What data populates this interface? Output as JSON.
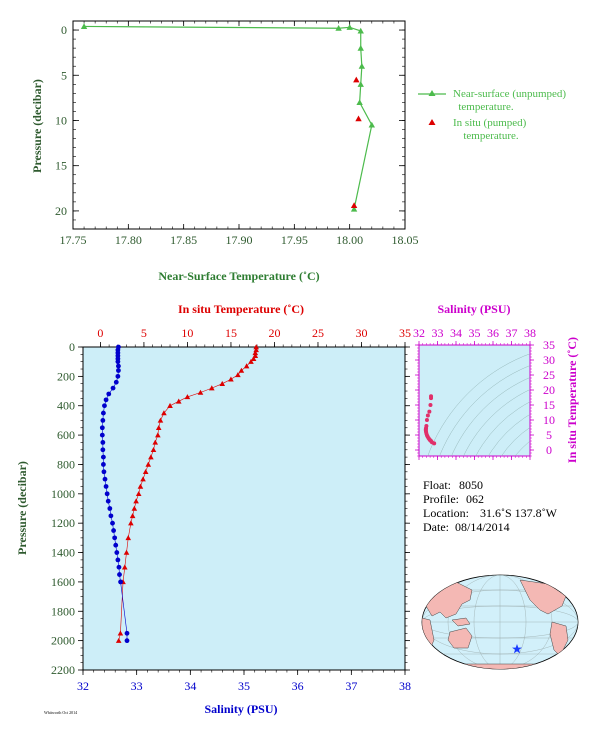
{
  "colors": {
    "green": "#4cbb4c",
    "label_green": "#2e7d32",
    "axis_dark": "#3a5a3a",
    "red": "#dd0000",
    "blue": "#0000cc",
    "magenta": "#cc00cc",
    "pink": "#e0306a",
    "panel_bg": "#cdeef8",
    "land": "#f4b8b4",
    "ocean": "#d2f0fa"
  },
  "chart_data": [
    {
      "id": "near_surface",
      "type": "line",
      "xlabel": "Near-Surface Temperature (˚C)",
      "ylabel": "Pressure (decibar)",
      "xlim": [
        17.75,
        18.05
      ],
      "ylim": [
        22,
        -1
      ],
      "xticks": [
        "17.75",
        "17.80",
        "17.85",
        "17.90",
        "17.95",
        "18.00",
        "18.05"
      ],
      "yticks": [
        "0",
        "5",
        "10",
        "15",
        "20"
      ],
      "legend": [
        "Near-surface (unpumped) temperature.",
        "In situ (pumped) temperature."
      ],
      "legend_position": "right",
      "series": [
        {
          "name": "Near-surface (unpumped) temperature.",
          "marker": "triangle",
          "x": [
            17.76,
            17.99,
            18.0,
            18.01,
            18.01,
            18.011,
            18.01,
            18.009,
            18.02,
            18.004
          ],
          "y": [
            -0.4,
            -0.2,
            -0.3,
            0.1,
            2.0,
            4.0,
            6.0,
            8.0,
            10.5,
            19.8
          ]
        },
        {
          "name": "In situ (pumped) temperature.",
          "marker": "triangle",
          "x": [
            18.006,
            18.008,
            18.004
          ],
          "y": [
            5.5,
            9.8,
            19.4
          ]
        }
      ]
    },
    {
      "id": "profile",
      "type": "line",
      "xlabel_bottom": "Salinity (PSU)",
      "xlabel_top": "In situ Temperature (˚C)",
      "ylabel": "Pressure (decibar)",
      "salinity_lim": [
        32,
        38
      ],
      "temperature_lim": [
        -2,
        35
      ],
      "ylim": [
        2200,
        0
      ],
      "salinity_ticks": [
        "32",
        "33",
        "34",
        "35",
        "36",
        "37",
        "38"
      ],
      "temperature_ticks": [
        "0",
        "5",
        "10",
        "15",
        "20",
        "25",
        "30",
        "35"
      ],
      "yticks": [
        "0",
        "200",
        "400",
        "600",
        "800",
        "1000",
        "1200",
        "1400",
        "1600",
        "1800",
        "2000",
        "2200"
      ],
      "series": [
        {
          "name": "Temperature",
          "axis": "temperature",
          "p": [
            0,
            20,
            40,
            60,
            80,
            100,
            130,
            160,
            190,
            220,
            250,
            280,
            310,
            340,
            370,
            400,
            450,
            500,
            550,
            600,
            650,
            700,
            750,
            800,
            850,
            900,
            950,
            1000,
            1050,
            1100,
            1150,
            1200,
            1300,
            1400,
            1500,
            1600,
            1950,
            2000
          ],
          "v": [
            17.9,
            17.9,
            17.8,
            17.8,
            17.6,
            17.3,
            16.8,
            16.2,
            15.8,
            15.0,
            14.0,
            12.8,
            11.5,
            10.0,
            9.0,
            8.0,
            7.3,
            6.9,
            6.7,
            6.6,
            6.3,
            6.1,
            5.8,
            5.5,
            5.2,
            4.9,
            4.6,
            4.4,
            4.1,
            3.9,
            3.7,
            3.5,
            3.2,
            3.0,
            2.8,
            2.6,
            2.3,
            2.1
          ]
        },
        {
          "name": "Salinity",
          "axis": "salinity",
          "p": [
            0,
            20,
            40,
            60,
            80,
            100,
            130,
            160,
            200,
            240,
            280,
            320,
            360,
            400,
            450,
            500,
            550,
            600,
            650,
            700,
            750,
            800,
            850,
            900,
            950,
            1000,
            1050,
            1100,
            1150,
            1200,
            1250,
            1300,
            1350,
            1400,
            1450,
            1500,
            1550,
            1600,
            1950,
            2000
          ],
          "v": [
            32.66,
            32.65,
            32.65,
            32.65,
            32.65,
            32.65,
            32.66,
            32.66,
            32.65,
            32.62,
            32.56,
            32.48,
            32.43,
            32.4,
            32.38,
            32.37,
            32.36,
            32.36,
            32.37,
            32.37,
            32.38,
            32.38,
            32.39,
            32.41,
            32.43,
            32.45,
            32.47,
            32.5,
            32.52,
            32.55,
            32.57,
            32.59,
            32.61,
            32.63,
            32.65,
            32.67,
            32.68,
            32.7,
            32.82,
            32.82
          ]
        }
      ]
    },
    {
      "id": "ts_diagram",
      "type": "scatter",
      "xlabel": "Salinity (PSU)",
      "ylabel": "In situ Temperature (˚C)",
      "xlim": [
        32,
        38
      ],
      "ylim": [
        -2,
        35
      ],
      "xticks": [
        "32",
        "33",
        "34",
        "35",
        "36",
        "37",
        "38"
      ],
      "yticks": [
        "0",
        "5",
        "10",
        "15",
        "20",
        "25",
        "30",
        "35"
      ],
      "series": [
        {
          "name": "T-S",
          "s": [
            32.65,
            32.65,
            32.62,
            32.56,
            32.48,
            32.43,
            32.4,
            32.38,
            32.37,
            32.37,
            32.38,
            32.4,
            32.43,
            32.47,
            32.52,
            32.57,
            32.61,
            32.65,
            32.7,
            32.82
          ],
          "t": [
            17.9,
            17.3,
            15.0,
            12.8,
            11.5,
            10.0,
            8.0,
            7.3,
            6.9,
            6.6,
            6.1,
            5.5,
            4.9,
            4.4,
            3.9,
            3.5,
            3.2,
            3.0,
            2.6,
            2.2
          ]
        }
      ]
    }
  ],
  "info": {
    "float_label": "Float:",
    "float_value": "8050",
    "profile_label": "Profile:",
    "profile_value": "062",
    "location_label": "Location:",
    "location_value": "31.6˚S  137.8˚W",
    "date_label": "Date:",
    "date_value": "08/14/2014"
  },
  "footer": "Whitworth Oct 2014"
}
